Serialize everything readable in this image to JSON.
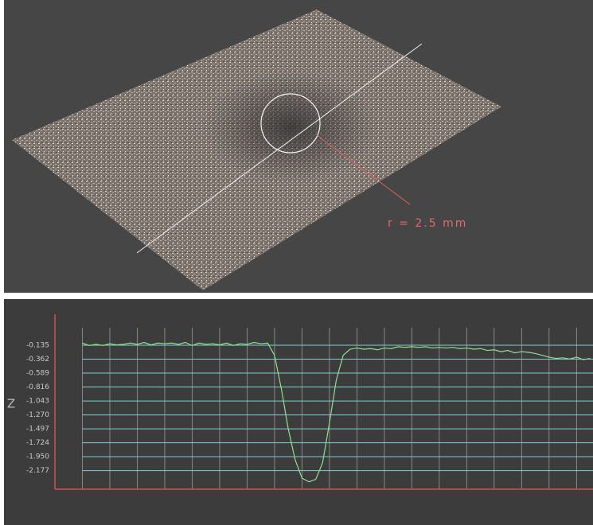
{
  "surface_view": {
    "annotation": "r = 2.5 mm"
  },
  "chart_data": {
    "type": "line",
    "y_label": "Z",
    "x": [
      1.0,
      1.25,
      1.5,
      1.75,
      2.0,
      2.25,
      2.5,
      2.75,
      3.0,
      3.25,
      3.5,
      3.75,
      4.0,
      4.25,
      4.5,
      4.75,
      5.0,
      5.25,
      5.5,
      5.75,
      6.0,
      6.25,
      6.5,
      6.75,
      7.0,
      7.25,
      7.5,
      7.75,
      8.0,
      8.25,
      8.5,
      8.75,
      9.0,
      9.25,
      9.5,
      9.75,
      10.0,
      10.25,
      10.5,
      10.75,
      11.0,
      11.25,
      11.5,
      11.75,
      12.0,
      12.25,
      12.5,
      12.75,
      13.0,
      13.25,
      13.5,
      13.75,
      14.0,
      14.25,
      14.5,
      14.75,
      15.0,
      15.25,
      15.5,
      15.75,
      16.0,
      16.25,
      16.5,
      16.75,
      17.0,
      17.25,
      17.5,
      17.75,
      18.0,
      18.25,
      18.5,
      18.75,
      19.0,
      19.25,
      19.5
    ],
    "values": [
      -0.1,
      -0.14,
      -0.12,
      -0.14,
      -0.11,
      -0.13,
      -0.12,
      -0.1,
      -0.12,
      -0.09,
      -0.13,
      -0.1,
      -0.11,
      -0.1,
      -0.12,
      -0.09,
      -0.14,
      -0.1,
      -0.12,
      -0.11,
      -0.13,
      -0.1,
      -0.14,
      -0.11,
      -0.12,
      -0.09,
      -0.11,
      -0.1,
      -0.3,
      -0.85,
      -1.5,
      -2.0,
      -2.3,
      -2.36,
      -2.32,
      -2.05,
      -1.4,
      -0.7,
      -0.3,
      -0.2,
      -0.18,
      -0.2,
      -0.19,
      -0.21,
      -0.18,
      -0.19,
      -0.16,
      -0.17,
      -0.16,
      -0.17,
      -0.16,
      -0.18,
      -0.17,
      -0.18,
      -0.17,
      -0.19,
      -0.18,
      -0.2,
      -0.19,
      -0.22,
      -0.21,
      -0.24,
      -0.22,
      -0.26,
      -0.24,
      -0.25,
      -0.27,
      -0.3,
      -0.33,
      -0.35,
      -0.34,
      -0.36,
      -0.33,
      -0.37,
      -0.35
    ],
    "color": "#8fe08f",
    "xlim": [
      0,
      19.6
    ],
    "xticks": [
      1,
      2,
      3,
      4,
      5,
      6,
      7,
      8,
      9,
      10,
      11,
      12,
      13,
      14,
      15,
      16,
      17,
      18,
      19
    ],
    "ylim": [
      -2.48,
      0.37
    ],
    "yticks": [
      -0.135,
      -0.362,
      -0.589,
      -0.816,
      -1.043,
      {
        "value": -1.27,
        "label": "-1.270"
      },
      -1.497,
      -1.724,
      {
        "value": -1.95,
        "label": "-1.950"
      },
      -2.177
    ],
    "grid": true
  }
}
